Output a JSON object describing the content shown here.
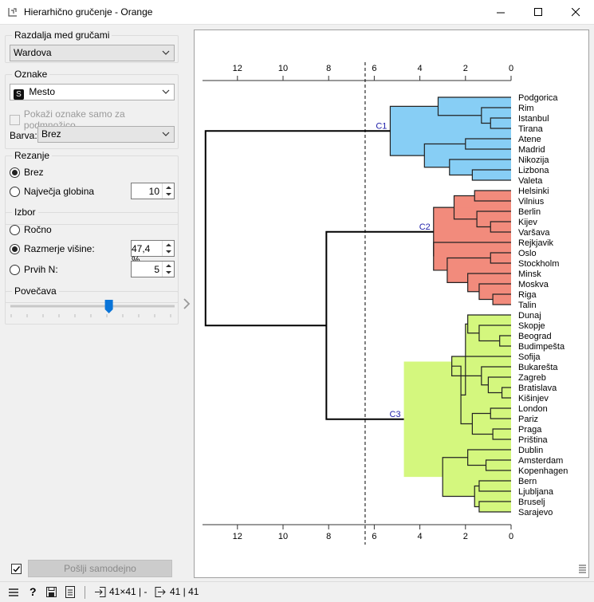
{
  "window": {
    "title": "Hierarhično gručenje - Orange"
  },
  "distance": {
    "title": "Razdalja med gručami",
    "value": "Wardova"
  },
  "labels": {
    "title": "Oznake",
    "value": "Mesto",
    "value_badge": "S",
    "subset_label": "Pokaži oznake samo za podmnožico",
    "color_label": "Barva:",
    "color_value": "Brez"
  },
  "pruning": {
    "title": "Rezanje",
    "none": "Brez",
    "max_depth_label": "Največja globina",
    "max_depth_value": "10"
  },
  "selection": {
    "title": "Izbor",
    "manual": "Ročno",
    "height_ratio_label": "Razmerje višine:",
    "height_ratio_value": "47,4 %",
    "top_n_label": "Prvih N:",
    "top_n_value": "5"
  },
  "zoom": {
    "title": "Povečava",
    "level": 0.6
  },
  "commit": {
    "label": "Pošlji samodejno"
  },
  "status": {
    "input": "41×41 | -",
    "output": "41 | 41"
  },
  "axis": {
    "ticks": [
      "12",
      "10",
      "8",
      "6",
      "4",
      "2",
      "0"
    ]
  },
  "colors": {
    "c1": "#87cef5",
    "c2": "#f28b7c",
    "c3": "#d4f77e"
  },
  "chart_data": {
    "type": "dendrogram",
    "xlim": [
      13.5,
      0
    ],
    "cut_height": 6.4,
    "clusters": [
      {
        "name": "C1",
        "members": [
          "Podgorica",
          "Rim",
          "Istanbul",
          "Tirana",
          "Atene",
          "Madrid",
          "Nikozija",
          "Lizbona",
          "Valeta"
        ]
      },
      {
        "name": "C2",
        "members": [
          "Helsinki",
          "Vilnius",
          "Berlin",
          "Kijev",
          "Varšava",
          "Rejkjavik",
          "Oslo",
          "Stockholm",
          "Minsk",
          "Moskva",
          "Riga",
          "Talin"
        ]
      },
      {
        "name": "C3",
        "members": [
          "Dunaj",
          "Skopje",
          "Beograd",
          "Budimpešta",
          "Sofija",
          "Bukarešta",
          "Zagreb",
          "Bratislava",
          "Kišinjev",
          "London",
          "Pariz",
          "Praga",
          "Priština",
          "Dublin",
          "Amsterdam",
          "Kopenhagen",
          "Bern",
          "Ljubljana",
          "Bruselj",
          "Sarajevo"
        ]
      }
    ],
    "cluster_heights": {
      "C1": 5.3,
      "C2": 3.4,
      "C3": 4.7,
      "C2C3": 8.1,
      "root": 13.4
    }
  }
}
